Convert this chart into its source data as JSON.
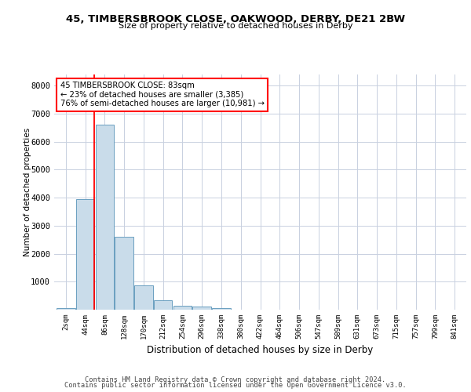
{
  "title": "45, TIMBERSBROOK CLOSE, OAKWOOD, DERBY, DE21 2BW",
  "subtitle": "Size of property relative to detached houses in Derby",
  "xlabel": "Distribution of detached houses by size in Derby",
  "ylabel": "Number of detached properties",
  "bin_labels": [
    "2sqm",
    "44sqm",
    "86sqm",
    "128sqm",
    "170sqm",
    "212sqm",
    "254sqm",
    "296sqm",
    "338sqm",
    "380sqm",
    "422sqm",
    "464sqm",
    "506sqm",
    "547sqm",
    "589sqm",
    "631sqm",
    "673sqm",
    "715sqm",
    "757sqm",
    "799sqm",
    "841sqm"
  ],
  "bar_heights": [
    50,
    3950,
    6620,
    2600,
    880,
    350,
    130,
    100,
    50,
    10,
    5,
    3,
    2,
    1,
    1,
    0,
    0,
    0,
    0,
    0,
    0
  ],
  "bar_color": "#c9dcea",
  "bar_edge_color": "#6a9fc0",
  "annotation_text": "45 TIMBERSBROOK CLOSE: 83sqm\n← 23% of detached houses are smaller (3,385)\n76% of semi-detached houses are larger (10,981) →",
  "annotation_box_color": "white",
  "annotation_box_edge": "red",
  "grid_color": "#c8d0e0",
  "ylim": [
    0,
    8400
  ],
  "yticks": [
    0,
    1000,
    2000,
    3000,
    4000,
    5000,
    6000,
    7000,
    8000
  ],
  "footer1": "Contains HM Land Registry data © Crown copyright and database right 2024.",
  "footer2": "Contains public sector information licensed under the Open Government Licence v3.0."
}
